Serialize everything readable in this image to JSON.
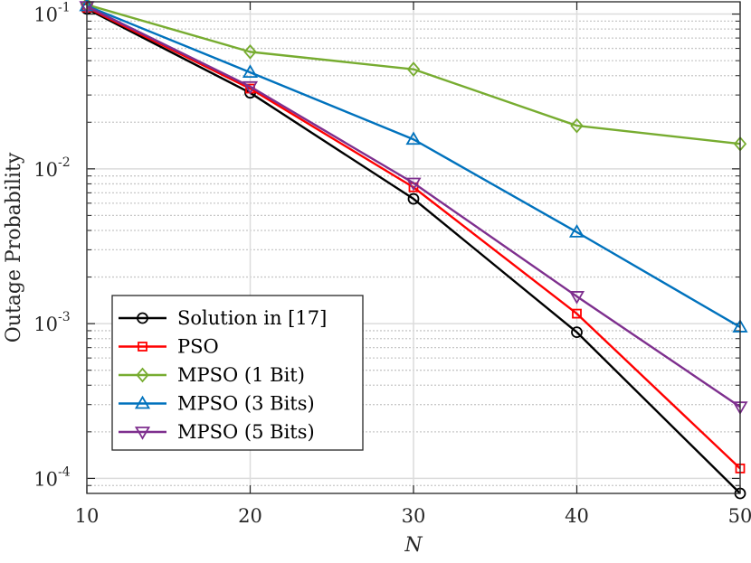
{
  "chart_data": {
    "type": "line",
    "title": "",
    "xlabel": "N",
    "ylabel": "Outage Probability",
    "x": [
      10,
      20,
      30,
      40,
      50
    ],
    "xlim": [
      10,
      50
    ],
    "ylim": [
      8e-05,
      0.12
    ],
    "yscale": "log",
    "x_ticks": [
      "10",
      "20",
      "30",
      "40",
      "50"
    ],
    "y_ticks": [
      {
        "base": "10",
        "exp": "-4",
        "value": 0.0001
      },
      {
        "base": "10",
        "exp": "-3",
        "value": 0.001
      },
      {
        "base": "10",
        "exp": "-2",
        "value": 0.01
      },
      {
        "base": "10",
        "exp": "-1",
        "value": 0.1
      }
    ],
    "grid": true,
    "legend_position": "bottom-left",
    "series": [
      {
        "name": "Solution in [17]",
        "color": "#000000",
        "marker": "circle",
        "values": [
          0.108,
          0.031,
          0.0064,
          0.00088,
          8e-05
        ]
      },
      {
        "name": "PSO",
        "color": "#ff0000",
        "marker": "square",
        "values": [
          0.11,
          0.033,
          0.0076,
          0.00116,
          0.000116
        ]
      },
      {
        "name": "MPSO (1 Bit)",
        "color": "#77ac30",
        "marker": "diamond",
        "values": [
          0.115,
          0.057,
          0.044,
          0.019,
          0.0145
        ]
      },
      {
        "name": "MPSO (3 Bits)",
        "color": "#0072bd",
        "marker": "triangle-up",
        "values": [
          0.113,
          0.042,
          0.0155,
          0.0039,
          0.00095
        ]
      },
      {
        "name": "MPSO (5 Bits)",
        "color": "#7e2f8e",
        "marker": "triangle-down",
        "values": [
          0.112,
          0.034,
          0.0081,
          0.0015,
          0.00029
        ]
      }
    ]
  }
}
